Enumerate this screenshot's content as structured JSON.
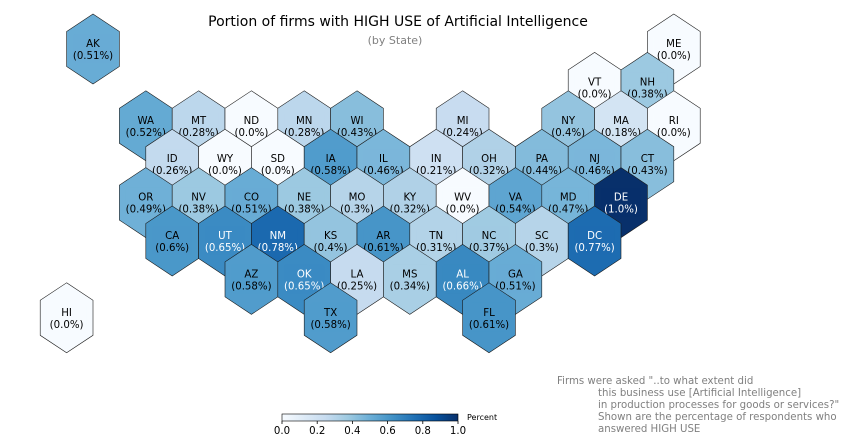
{
  "title": "Portion of firms with HIGH USE of Artificial Intelligence",
  "subtitle": "(by State)",
  "note_lines": [
    "Firms were asked \"..to what extent did",
    "this business use [Artificial Intelligence]",
    "in production processes for goods or services?\"",
    "Shown are the percentage of respondents who",
    "answered HIGH USE"
  ],
  "colorbar": {
    "label": "Percent",
    "min": 0,
    "max": 1,
    "ticks": [
      "0.0",
      "0.2",
      "0.4",
      "0.6",
      "0.8",
      "1.0"
    ],
    "colormap": "Blues"
  },
  "chart_data": {
    "type": "heatmap",
    "map_kind": "US state hexagon tile map",
    "value_unit": "Percent",
    "states": [
      {
        "code": "AK",
        "value": 0.51,
        "label": "(0.51%)",
        "row": 0,
        "col": 0
      },
      {
        "code": "ME",
        "value": 0.0,
        "label": "(0.0%)",
        "row": 0,
        "col": 11
      },
      {
        "code": "VT",
        "value": 0.0,
        "label": "(0.0%)",
        "row": 1,
        "col": 9.5
      },
      {
        "code": "NH",
        "value": 0.38,
        "label": "(0.38%)",
        "row": 1,
        "col": 10.5
      },
      {
        "code": "WA",
        "value": 0.52,
        "label": "(0.52%)",
        "row": 2,
        "col": 1
      },
      {
        "code": "MT",
        "value": 0.28,
        "label": "(0.28%)",
        "row": 2,
        "col": 2
      },
      {
        "code": "ND",
        "value": 0.0,
        "label": "(0.0%)",
        "row": 2,
        "col": 3
      },
      {
        "code": "MN",
        "value": 0.28,
        "label": "(0.28%)",
        "row": 2,
        "col": 4
      },
      {
        "code": "WI",
        "value": 0.43,
        "label": "(0.43%)",
        "row": 2,
        "col": 5
      },
      {
        "code": "MI",
        "value": 0.24,
        "label": "(0.24%)",
        "row": 2,
        "col": 7
      },
      {
        "code": "NY",
        "value": 0.4,
        "label": "(0.4%)",
        "row": 2,
        "col": 9
      },
      {
        "code": "MA",
        "value": 0.18,
        "label": "(0.18%)",
        "row": 2,
        "col": 10
      },
      {
        "code": "RI",
        "value": 0.0,
        "label": "(0.0%)",
        "row": 2,
        "col": 11
      },
      {
        "code": "ID",
        "value": 0.26,
        "label": "(0.26%)",
        "row": 3,
        "col": 1.5
      },
      {
        "code": "WY",
        "value": 0.0,
        "label": "(0.0%)",
        "row": 3,
        "col": 2.5
      },
      {
        "code": "SD",
        "value": 0.0,
        "label": "(0.0%)",
        "row": 3,
        "col": 3.5
      },
      {
        "code": "IA",
        "value": 0.58,
        "label": "(0.58%)",
        "row": 3,
        "col": 4.5
      },
      {
        "code": "IL",
        "value": 0.46,
        "label": "(0.46%)",
        "row": 3,
        "col": 5.5
      },
      {
        "code": "IN",
        "value": 0.21,
        "label": "(0.21%)",
        "row": 3,
        "col": 6.5
      },
      {
        "code": "OH",
        "value": 0.32,
        "label": "(0.32%)",
        "row": 3,
        "col": 7.5
      },
      {
        "code": "PA",
        "value": 0.44,
        "label": "(0.44%)",
        "row": 3,
        "col": 8.5
      },
      {
        "code": "NJ",
        "value": 0.46,
        "label": "(0.46%)",
        "row": 3,
        "col": 9.5
      },
      {
        "code": "CT",
        "value": 0.43,
        "label": "(0.43%)",
        "row": 3,
        "col": 10.5
      },
      {
        "code": "OR",
        "value": 0.49,
        "label": "(0.49%)",
        "row": 4,
        "col": 1
      },
      {
        "code": "NV",
        "value": 0.38,
        "label": "(0.38%)",
        "row": 4,
        "col": 2
      },
      {
        "code": "CO",
        "value": 0.51,
        "label": "(0.51%)",
        "row": 4,
        "col": 3
      },
      {
        "code": "NE",
        "value": 0.38,
        "label": "(0.38%)",
        "row": 4,
        "col": 4
      },
      {
        "code": "MO",
        "value": 0.3,
        "label": "(0.3%)",
        "row": 4,
        "col": 5
      },
      {
        "code": "KY",
        "value": 0.32,
        "label": "(0.32%)",
        "row": 4,
        "col": 6
      },
      {
        "code": "WV",
        "value": 0.0,
        "label": "(0.0%)",
        "row": 4,
        "col": 7
      },
      {
        "code": "VA",
        "value": 0.54,
        "label": "(0.54%)",
        "row": 4,
        "col": 8
      },
      {
        "code": "MD",
        "value": 0.47,
        "label": "(0.47%)",
        "row": 4,
        "col": 9
      },
      {
        "code": "DE",
        "value": 1.0,
        "label": "(1.0%)",
        "row": 4,
        "col": 10
      },
      {
        "code": "CA",
        "value": 0.6,
        "label": "(0.6%)",
        "row": 5,
        "col": 1.5
      },
      {
        "code": "UT",
        "value": 0.65,
        "label": "(0.65%)",
        "row": 5,
        "col": 2.5
      },
      {
        "code": "NM",
        "value": 0.78,
        "label": "(0.78%)",
        "row": 5,
        "col": 3.5
      },
      {
        "code": "KS",
        "value": 0.4,
        "label": "(0.4%)",
        "row": 5,
        "col": 4.5
      },
      {
        "code": "AR",
        "value": 0.61,
        "label": "(0.61%)",
        "row": 5,
        "col": 5.5
      },
      {
        "code": "TN",
        "value": 0.31,
        "label": "(0.31%)",
        "row": 5,
        "col": 6.5
      },
      {
        "code": "NC",
        "value": 0.37,
        "label": "(0.37%)",
        "row": 5,
        "col": 7.5
      },
      {
        "code": "SC",
        "value": 0.3,
        "label": "(0.3%)",
        "row": 5,
        "col": 8.5
      },
      {
        "code": "DC",
        "value": 0.77,
        "label": "(0.77%)",
        "row": 5,
        "col": 9.5
      },
      {
        "code": "AZ",
        "value": 0.58,
        "label": "(0.58%)",
        "row": 6,
        "col": 3
      },
      {
        "code": "OK",
        "value": 0.65,
        "label": "(0.65%)",
        "row": 6,
        "col": 4
      },
      {
        "code": "LA",
        "value": 0.25,
        "label": "(0.25%)",
        "row": 6,
        "col": 5
      },
      {
        "code": "MS",
        "value": 0.34,
        "label": "(0.34%)",
        "row": 6,
        "col": 6
      },
      {
        "code": "AL",
        "value": 0.66,
        "label": "(0.66%)",
        "row": 6,
        "col": 7
      },
      {
        "code": "GA",
        "value": 0.51,
        "label": "(0.51%)",
        "row": 6,
        "col": 8
      },
      {
        "code": "HI",
        "value": 0.0,
        "label": "(0.0%)",
        "row": 7,
        "col": -0.5
      },
      {
        "code": "TX",
        "value": 0.58,
        "label": "(0.58%)",
        "row": 7,
        "col": 4.5
      },
      {
        "code": "FL",
        "value": 0.61,
        "label": "(0.61%)",
        "row": 7,
        "col": 7.5
      }
    ]
  }
}
